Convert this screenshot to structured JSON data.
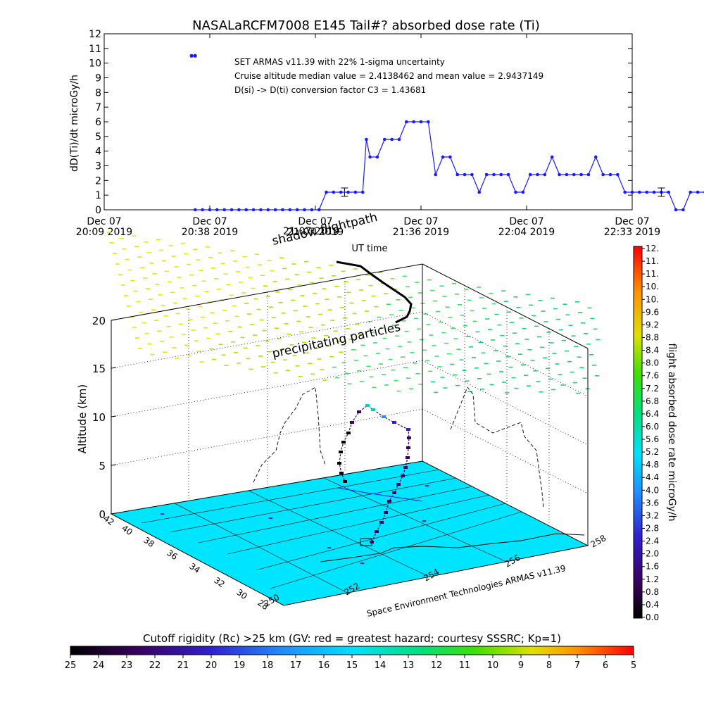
{
  "title": "NASALaRCFM7008  E145 Tail#? absorbed dose rate (Ti)",
  "colors": {
    "series": "#1a1aff",
    "plot_frame": "#000000",
    "ground": "#00e5ff",
    "flight_path": "#000000"
  },
  "chart_data": [
    {
      "type": "line",
      "ylabel": "dD(Ti)/dt microGy/h",
      "xlabel": "UT time",
      "ylim": [
        0,
        12
      ],
      "y_ticks": [
        "0",
        "1",
        "2",
        "3",
        "4",
        "5",
        "6",
        "7",
        "8",
        "9",
        "10",
        "11",
        "12"
      ],
      "x_ticks": [
        {
          "line1": "Dec 07",
          "line2": "20:09 2019"
        },
        {
          "line1": "Dec 07",
          "line2": "20:38 2019"
        },
        {
          "line1": "Dec 07",
          "line2": "21:07 2019"
        },
        {
          "line1": "Dec 07",
          "line2": "21:36 2019"
        },
        {
          "line1": "Dec 07",
          "line2": "22:04 2019"
        },
        {
          "line1": "Dec 07",
          "line2": "22:33 2019"
        }
      ],
      "annotations": [
        "SET ARMAS v11.39 with 22% 1-sigma uncertainty",
        "Cruise altitude median value = 2.4138462 and mean value = 2.9437149",
        "D(si) -> D(ti) conversion factor C3 = 1.43681"
      ],
      "series": [
        {
          "x_minutes_after_20_09": [
            25,
            27,
            29,
            31,
            33,
            35,
            37,
            39,
            41,
            43,
            45,
            47,
            49,
            51,
            53,
            55,
            57,
            59,
            61,
            63,
            65,
            67,
            69,
            71,
            72,
            73,
            75,
            77,
            79,
            81,
            83,
            85,
            87,
            89,
            91,
            93,
            95,
            97,
            99,
            101,
            103,
            105,
            107,
            109,
            111,
            113,
            115,
            117,
            119,
            121,
            123,
            125,
            127,
            129,
            131,
            133,
            135,
            137,
            139,
            141,
            143,
            145,
            147,
            149,
            151,
            153,
            155,
            157,
            159,
            161,
            163,
            165,
            167,
            169,
            171,
            173,
            175,
            177,
            179,
            181,
            183,
            185,
            187,
            189,
            191,
            193,
            195,
            197,
            199,
            201,
            203,
            205,
            207,
            209,
            211,
            213,
            215,
            217,
            219
          ],
          "values": [
            0,
            0,
            0,
            0,
            0,
            0,
            0,
            0,
            0,
            0,
            0,
            0,
            0,
            0,
            0,
            0,
            0,
            0,
            1.2,
            1.2,
            1.2,
            1.2,
            1.2,
            1.2,
            4.8,
            3.6,
            3.6,
            4.8,
            4.8,
            4.8,
            6.0,
            6.0,
            6.0,
            6.0,
            2.4,
            3.6,
            3.6,
            2.4,
            2.4,
            2.4,
            1.2,
            2.4,
            2.4,
            2.4,
            2.4,
            1.2,
            1.2,
            2.4,
            2.4,
            2.4,
            3.6,
            2.4,
            2.4,
            2.4,
            2.4,
            2.4,
            3.6,
            2.4,
            2.4,
            2.4,
            1.2,
            1.2,
            1.2,
            1.2,
            1.2,
            1.2,
            1.2,
            0,
            0,
            1.2,
            1.2,
            1.2,
            1.2,
            1.2,
            1.2,
            1.2,
            1.2,
            1.2,
            0,
            0,
            0,
            0,
            0,
            0,
            1.2,
            1.2,
            1.2,
            1.2,
            1.2,
            1.2,
            1.2,
            1.2,
            1.2,
            1.2,
            1.2,
            1.2,
            1.2,
            1.2,
            1.2
          ]
        }
      ],
      "first_point": {
        "x_minutes_after_20_09": 24,
        "value": 10.5
      }
    },
    {
      "type": "3d-flight-track",
      "zlabel": "Altitude (km)",
      "z_ticks": [
        "0",
        "5",
        "10",
        "15",
        "20"
      ],
      "lat_ticks": [
        "42",
        "40",
        "38",
        "36",
        "34",
        "32",
        "30",
        "28"
      ],
      "lon_ticks": [
        "250",
        "252",
        "254",
        "256",
        "258"
      ],
      "floating_labels": [
        "shadow flightpath",
        "precipitating particles",
        "21:07 2019"
      ],
      "credit": "Space Environment Technologies ARMAS v11.39",
      "dose_colorbar": {
        "label": "flight absorbed dose rate microGy/h",
        "ticks": [
          "0.0",
          "0.4",
          "0.8",
          "1.2",
          "1.6",
          "2.0",
          "2.4",
          "2.8",
          "3.2",
          "3.6",
          "4.0",
          "4.4",
          "4.8",
          "5.2",
          "5.6",
          "6.0",
          "6.4",
          "6.8",
          "7.2",
          "7.6",
          "8.0",
          "8.4",
          "8.8",
          "9.2",
          "9.6",
          "10.",
          "10.",
          "11.",
          "11.",
          "12."
        ]
      },
      "rigidity_colorbar": {
        "label": "Cutoff rigidity (Rc) >25 km (GV: red = greatest hazard; courtesy SSSRC; Kp=1)",
        "ticks": [
          "25",
          "24",
          "23",
          "22",
          "21",
          "20",
          "19",
          "18",
          "17",
          "16",
          "15",
          "14",
          "13",
          "12",
          "11",
          "10",
          "9",
          "8",
          "7",
          "6",
          "5"
        ]
      }
    }
  ]
}
